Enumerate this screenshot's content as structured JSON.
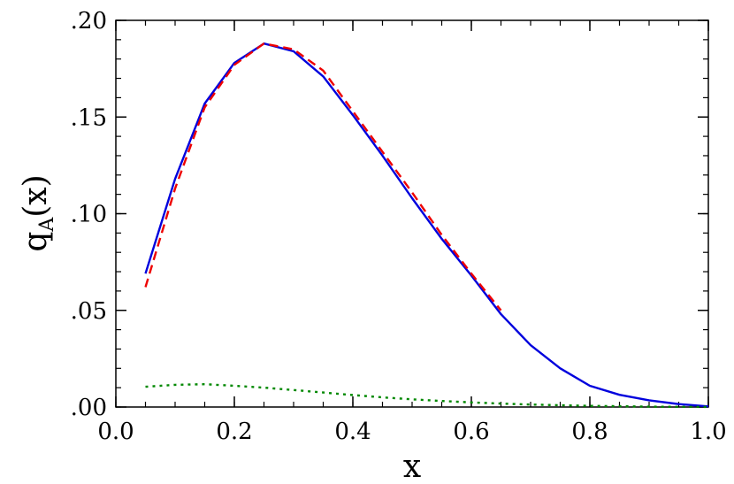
{
  "chart_data": {
    "type": "line",
    "title": "",
    "xlabel": "x",
    "ylabel": {
      "main": "q",
      "subscript": "A",
      "suffix": "(x)"
    },
    "xlim": [
      0.0,
      1.0
    ],
    "ylim": [
      0.0,
      0.2
    ],
    "grid": false,
    "x_ticks": [
      {
        "value": 0.0,
        "label": "0.0"
      },
      {
        "value": 0.2,
        "label": "0.2"
      },
      {
        "value": 0.4,
        "label": "0.4"
      },
      {
        "value": 0.6,
        "label": "0.6"
      },
      {
        "value": 0.8,
        "label": "0.8"
      },
      {
        "value": 1.0,
        "label": "1.0"
      }
    ],
    "y_ticks": [
      {
        "value": 0.0,
        "label": ".00"
      },
      {
        "value": 0.05,
        "label": ".05"
      },
      {
        "value": 0.1,
        "label": ".10"
      },
      {
        "value": 0.15,
        "label": ".15"
      },
      {
        "value": 0.2,
        "label": ".20"
      }
    ],
    "x_minor_step": 0.05,
    "y_minor_step": 0.01,
    "series": [
      {
        "color": "#0000dd",
        "style": "solid",
        "x": [
          0.05,
          0.1,
          0.15,
          0.2,
          0.25,
          0.3,
          0.35,
          0.4,
          0.45,
          0.5,
          0.55,
          0.6,
          0.65,
          0.7,
          0.75,
          0.8,
          0.85,
          0.9,
          0.95,
          1.0
        ],
        "y": [
          0.069,
          0.118,
          0.157,
          0.178,
          0.188,
          0.184,
          0.171,
          0.151,
          0.13,
          0.108,
          0.087,
          0.068,
          0.048,
          0.032,
          0.02,
          0.011,
          0.0063,
          0.0035,
          0.0015,
          0.0003
        ]
      },
      {
        "color": "#ee0000",
        "style": "dashed",
        "x": [
          0.05,
          0.1,
          0.15,
          0.2,
          0.25,
          0.3,
          0.35,
          0.4,
          0.45,
          0.5,
          0.55,
          0.6,
          0.65
        ],
        "y": [
          0.062,
          0.113,
          0.155,
          0.177,
          0.188,
          0.185,
          0.174,
          0.153,
          0.132,
          0.111,
          0.089,
          0.069,
          0.05
        ]
      },
      {
        "color": "#008800",
        "style": "dotted",
        "x": [
          0.05,
          0.1,
          0.15,
          0.2,
          0.25,
          0.3,
          0.35,
          0.4,
          0.45,
          0.5,
          0.55,
          0.6,
          0.65,
          0.7,
          0.75,
          0.8,
          0.85,
          0.9,
          0.95,
          1.0
        ],
        "y": [
          0.0105,
          0.0115,
          0.0118,
          0.011,
          0.01,
          0.0088,
          0.0075,
          0.0062,
          0.005,
          0.004,
          0.0031,
          0.0024,
          0.0018,
          0.0013,
          0.0009,
          0.0006,
          0.0004,
          0.0002,
          0.0001,
          5e-05
        ]
      }
    ]
  }
}
